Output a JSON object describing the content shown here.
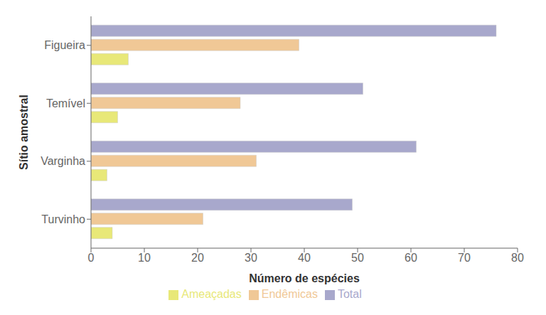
{
  "chart_data": {
    "type": "bar",
    "orientation": "horizontal",
    "categories": [
      "Turvinho",
      "Varginha",
      "Temível",
      "Figueira"
    ],
    "series": [
      {
        "name": "Total",
        "color": "#a8a8cc",
        "values": [
          49,
          61,
          51,
          76
        ]
      },
      {
        "name": "Endêmicas",
        "color": "#f0c896",
        "values": [
          21,
          31,
          28,
          39
        ]
      },
      {
        "name": "Ameaçadas",
        "color": "#e8e878",
        "values": [
          4,
          3,
          5,
          7
        ]
      }
    ],
    "xlabel": "Número de espécies",
    "ylabel": "Sítio amostral",
    "xlim": [
      0,
      80
    ],
    "xticks": [
      0,
      10,
      20,
      30,
      40,
      50,
      60,
      70,
      80
    ],
    "legend": "bottom"
  }
}
